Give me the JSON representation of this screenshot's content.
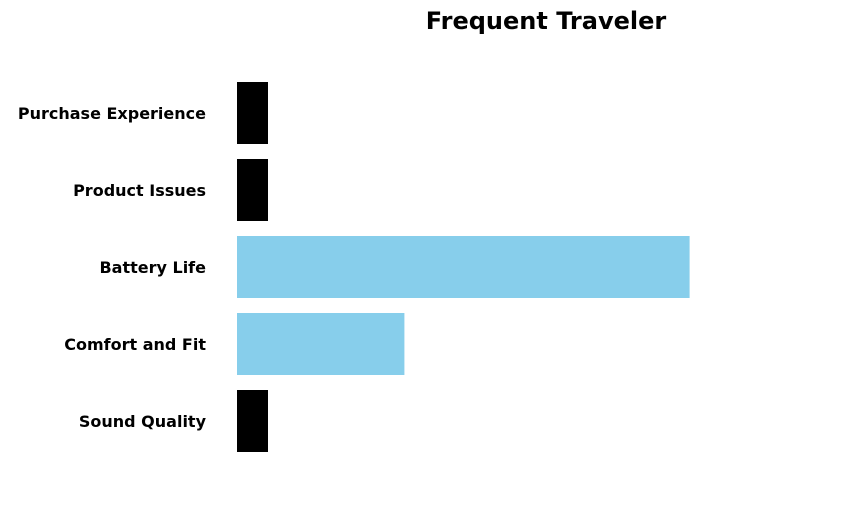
{
  "chart_data": {
    "type": "bar",
    "orientation": "horizontal",
    "title": "Frequent Traveler",
    "xlabel": "",
    "ylabel": "",
    "categories": [
      "Sound Quality",
      "Comfort and Fit",
      "Battery Life",
      "Product Issues",
      "Purchase Experience"
    ],
    "values": [
      1,
      5.4,
      14.6,
      1,
      1
    ],
    "xlim": [
      0,
      20
    ],
    "grid": false,
    "axes_visible": false,
    "bar_colors": [
      "#000000",
      "#87ceeb",
      "#87ceeb",
      "#000000",
      "#000000"
    ]
  }
}
